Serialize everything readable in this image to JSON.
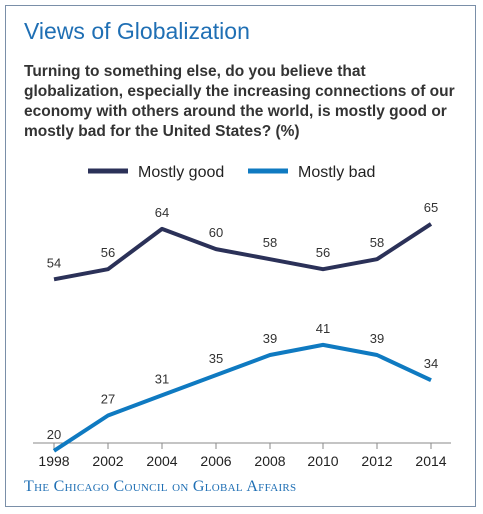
{
  "header": {
    "title": "Views of Globalization",
    "question": "Turning to something else, do you believe that globalization, especially the increasing connections of our economy with others around the world, is mostly good or mostly bad for the United States? (%)"
  },
  "footer": {
    "source": "The Chicago Council on Global Affairs"
  },
  "colors": {
    "good": "#2b3158",
    "bad": "#0f7ac1",
    "title": "#1f6fb4"
  },
  "chart_data": {
    "type": "line",
    "x": [
      "1998",
      "2002",
      "2004",
      "2006",
      "2008",
      "2010",
      "2012",
      "2014"
    ],
    "series": [
      {
        "name": "Mostly good",
        "values": [
          54,
          56,
          64,
          60,
          58,
          56,
          58,
          65
        ]
      },
      {
        "name": "Mostly bad",
        "values": [
          20,
          27,
          31,
          35,
          39,
          41,
          39,
          34
        ]
      }
    ],
    "ylim": [
      0,
      100
    ],
    "legend": "top",
    "grid": false
  }
}
